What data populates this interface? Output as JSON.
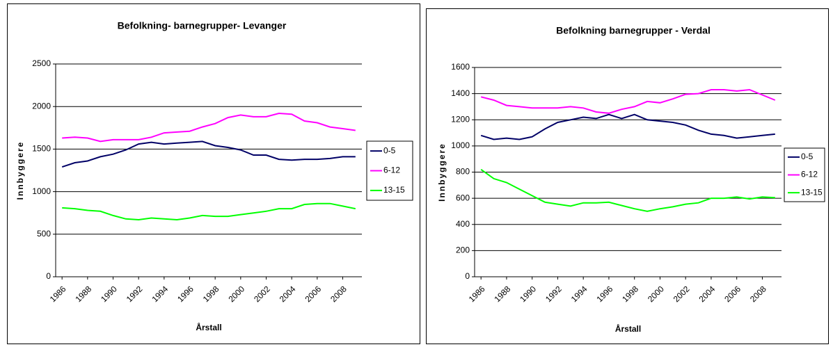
{
  "chart_data": [
    {
      "type": "line",
      "title": "Befolkning- barnegrupper- Levanger",
      "x_label": "Årstall",
      "y_label": "Innbyggere",
      "x": [
        1986,
        1987,
        1988,
        1989,
        1990,
        1991,
        1992,
        1993,
        1994,
        1995,
        1996,
        1997,
        1998,
        1999,
        2000,
        2001,
        2002,
        2003,
        2004,
        2005,
        2006,
        2007,
        2008,
        2009
      ],
      "xlim": [
        1985.5,
        2009.5
      ],
      "xticks": [
        1986,
        1988,
        1990,
        1992,
        1994,
        1996,
        1998,
        2000,
        2002,
        2004,
        2006,
        2008
      ],
      "ylim": [
        0,
        2500
      ],
      "yticks": [
        0,
        500,
        1000,
        1500,
        2000,
        2500
      ],
      "grid": true,
      "legend": "right",
      "series": [
        {
          "name": "0-5",
          "color": "#000066",
          "values": [
            1290,
            1340,
            1360,
            1410,
            1440,
            1490,
            1560,
            1580,
            1560,
            1570,
            1580,
            1590,
            1540,
            1520,
            1490,
            1430,
            1430,
            1380,
            1370,
            1380,
            1380,
            1390,
            1410,
            1410
          ]
        },
        {
          "name": "6-12",
          "color": "#ff00ff",
          "values": [
            1630,
            1640,
            1630,
            1590,
            1610,
            1610,
            1610,
            1640,
            1690,
            1700,
            1710,
            1760,
            1800,
            1870,
            1900,
            1880,
            1880,
            1920,
            1910,
            1830,
            1810,
            1760,
            1740,
            1720
          ]
        },
        {
          "name": "13-15",
          "color": "#00ff00",
          "values": [
            810,
            800,
            780,
            770,
            720,
            680,
            670,
            690,
            680,
            670,
            690,
            720,
            710,
            710,
            730,
            750,
            770,
            800,
            800,
            850,
            860,
            860,
            830,
            800
          ]
        }
      ]
    },
    {
      "type": "line",
      "title": "Befolkning barnegrupper - Verdal",
      "x_label": "Årstall",
      "y_label": "Innbyggere",
      "x": [
        1986,
        1987,
        1988,
        1989,
        1990,
        1991,
        1992,
        1993,
        1994,
        1995,
        1996,
        1997,
        1998,
        1999,
        2000,
        2001,
        2002,
        2003,
        2004,
        2005,
        2006,
        2007,
        2008,
        2009
      ],
      "xlim": [
        1985.5,
        2009.5
      ],
      "xticks": [
        1986,
        1988,
        1990,
        1992,
        1994,
        1996,
        1998,
        2000,
        2002,
        2004,
        2006,
        2008
      ],
      "ylim": [
        0,
        1600
      ],
      "yticks": [
        0,
        200,
        400,
        600,
        800,
        1000,
        1200,
        1400,
        1600
      ],
      "grid": true,
      "legend": "right",
      "series": [
        {
          "name": "0-5",
          "color": "#000066",
          "values": [
            1080,
            1050,
            1060,
            1050,
            1070,
            1130,
            1180,
            1200,
            1220,
            1210,
            1240,
            1210,
            1240,
            1200,
            1190,
            1180,
            1160,
            1120,
            1090,
            1080,
            1060,
            1070,
            1080,
            1090
          ]
        },
        {
          "name": "6-12",
          "color": "#ff00ff",
          "values": [
            1375,
            1350,
            1310,
            1300,
            1290,
            1290,
            1290,
            1300,
            1290,
            1260,
            1250,
            1280,
            1300,
            1340,
            1330,
            1360,
            1395,
            1400,
            1430,
            1430,
            1420,
            1430,
            1390,
            1350
          ]
        },
        {
          "name": "13-15",
          "color": "#00ff00",
          "values": [
            820,
            750,
            720,
            670,
            620,
            570,
            555,
            540,
            565,
            565,
            570,
            545,
            520,
            500,
            520,
            535,
            555,
            565,
            600,
            600,
            610,
            595,
            610,
            605
          ]
        }
      ]
    }
  ]
}
